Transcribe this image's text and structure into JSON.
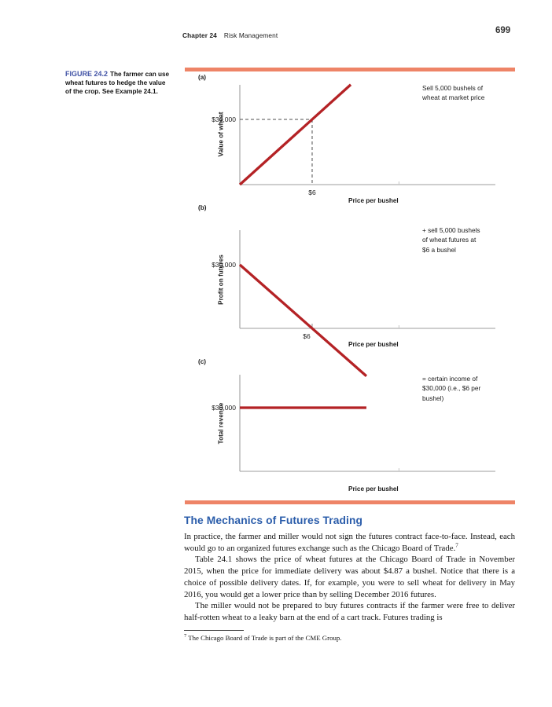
{
  "header": {
    "chapter_label": "Chapter 24",
    "chapter_title": "Risk Management",
    "page_number": "699"
  },
  "figure": {
    "label": "FIGURE 24.2",
    "caption": "The farmer can use wheat futures to hedge the value of the crop. See Example 24.1.",
    "panels": {
      "a": {
        "tag": "(a)",
        "y_axis_label": "Value of wheat",
        "x_axis_label": "Price per bushel",
        "y_tick": "$30,000",
        "x_tick": "$6",
        "annotation": [
          "Sell 5,000 bushels of",
          "wheat at market price"
        ]
      },
      "b": {
        "tag": "(b)",
        "y_axis_label": "Profit on futures",
        "x_axis_label": "Price per bushel",
        "y_tick": "$30,000",
        "x_tick": "$6",
        "annotation": [
          "+ sell 5,000 bushels",
          "of wheat futures at",
          "$6 a bushel"
        ]
      },
      "c": {
        "tag": "(c)",
        "y_axis_label": "Total revenue",
        "x_axis_label": "Price per bushel",
        "y_tick": "$30,000",
        "annotation": [
          "= certain income of",
          "$30,000 (i.e., $6 per",
          "bushel)"
        ]
      }
    }
  },
  "chart_data": [
    {
      "panel": "a",
      "type": "line",
      "title": "Sell 5,000 bushels of wheat at market price",
      "xlabel": "Price per bushel",
      "ylabel": "Value of wheat",
      "relationship": "value = 5,000 bushels × price per bushel",
      "points": [
        [
          0,
          0
        ],
        [
          9.2,
          46000
        ]
      ],
      "marked_point": {
        "x": 6,
        "y": 30000,
        "x_label": "$6",
        "y_label": "$30,000",
        "guides": true
      },
      "minor_tick_x": 13.2,
      "xlim": [
        0,
        21.2
      ],
      "grid": false
    },
    {
      "panel": "b",
      "type": "line",
      "title": "+ sell 5,000 bushels of wheat futures at $6 a bushel",
      "xlabel": "Price per bushel",
      "ylabel": "Profit on futures",
      "relationship": "profit = 5,000 × ($6 − price per bushel); y-intercept $30,000, zero profit at $6",
      "points": [
        [
          0,
          30000
        ],
        [
          10.5,
          -22500
        ]
      ],
      "marked_point": {
        "x": 6,
        "y": 0,
        "x_label": "$6",
        "tick": true
      },
      "minor_tick_x": 13.2,
      "xlim": [
        0,
        21.2
      ],
      "grid": false
    },
    {
      "panel": "c",
      "type": "line",
      "title": "= certain income of $30,000 (i.e., $6 per bushel)",
      "xlabel": "Price per bushel",
      "ylabel": "Total revenue",
      "relationship": "total revenue is constant at $30,000 for any wheat price",
      "points": [
        [
          0,
          30000
        ],
        [
          10.5,
          30000
        ]
      ],
      "minor_tick_x": 13.2,
      "xlim": [
        0,
        21.2
      ],
      "grid": false
    }
  ],
  "section": {
    "heading": "The Mechanics of Futures Trading",
    "paragraphs": [
      "In practice, the farmer and miller would not sign the futures contract face-to-face. Instead, each would go to an organized futures exchange such as the Chicago Board of Trade.",
      "Table 24.1 shows the price of wheat futures at the Chicago Board of Trade in November 2015, when the price for immediate delivery was about $4.87 a bushel. Notice that there is a choice of possible delivery dates. If, for example, you were to sell wheat for delivery in May 2016, you would get a lower price than by selling December 2016 futures.",
      "The miller would not be prepared to buy futures contracts if the farmer were free to deliver half-rotten wheat to a leaky barn at the end of a cart track. Futures trading is"
    ],
    "footnote_ref": "7",
    "footnote_marker": "7",
    "footnote": "The Chicago Board of Trade is part of the CME Group."
  },
  "colors": {
    "accent_red": "#b42225",
    "rule_salmon": "#ee8467",
    "heading_blue": "#2a5caa",
    "figure_label_blue": "#4052a5",
    "axis_gray": "#9e9e9e",
    "dash_gray": "#4d4d4d"
  }
}
